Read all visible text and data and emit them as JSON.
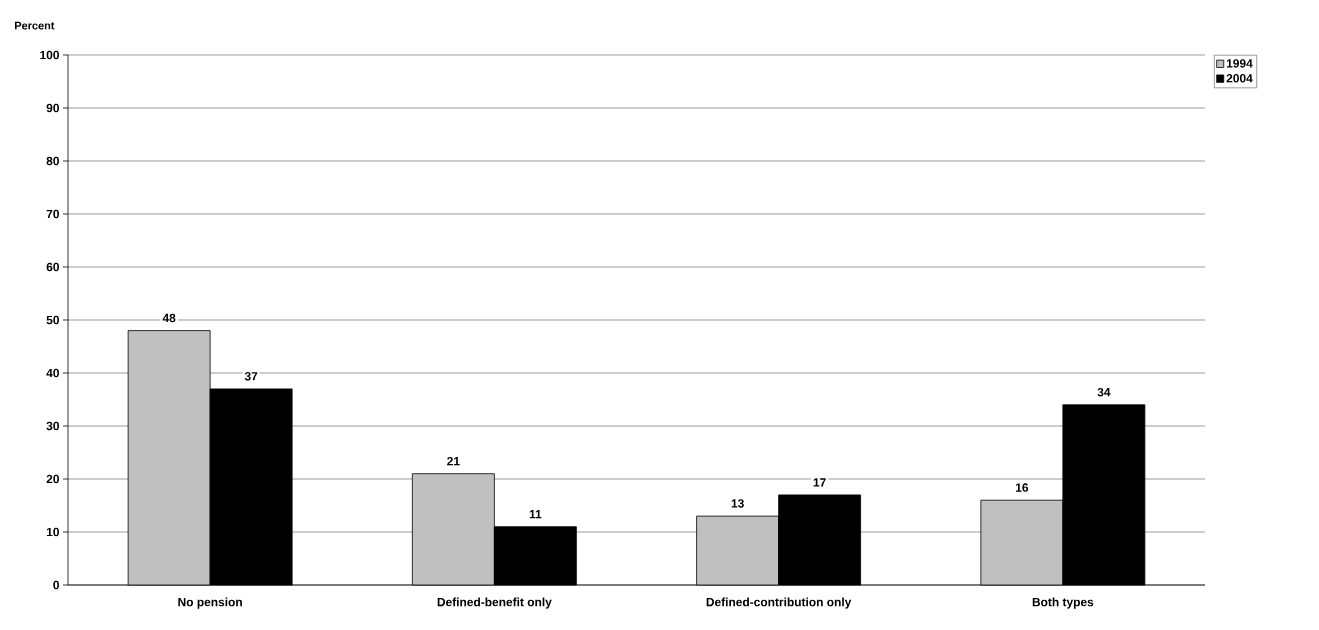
{
  "chart_data": {
    "type": "bar",
    "ylabel": "Percent",
    "categories": [
      "No pension",
      "Defined-benefit only",
      "Defined-contribution only",
      "Both types"
    ],
    "series": [
      {
        "name": "1994",
        "color": "#c0c0c0",
        "values": [
          48,
          21,
          13,
          16
        ]
      },
      {
        "name": "2004",
        "color": "#000000",
        "values": [
          37,
          11,
          17,
          34
        ]
      }
    ],
    "ylim": [
      0,
      100
    ],
    "yticks": [
      0,
      10,
      20,
      30,
      40,
      50,
      60,
      70,
      80,
      90,
      100
    ],
    "grid": "y",
    "legend": "top right",
    "data_labels": true
  }
}
